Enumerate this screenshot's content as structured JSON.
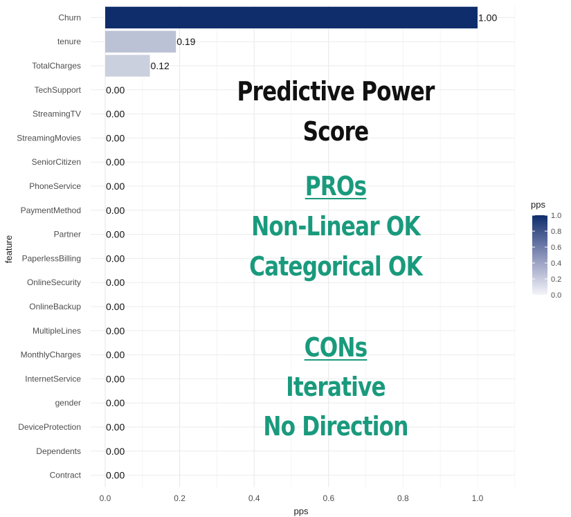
{
  "chart_data": {
    "type": "bar",
    "orientation": "horizontal",
    "xlabel": "pps",
    "ylabel": "feature",
    "xlim": [
      0,
      1.1
    ],
    "x_ticks": [
      "0.0",
      "0.2",
      "0.4",
      "0.6",
      "0.8",
      "1.0"
    ],
    "grid": true,
    "categories": [
      "Churn",
      "tenure",
      "TotalCharges",
      "TechSupport",
      "StreamingTV",
      "StreamingMovies",
      "SeniorCitizen",
      "PhoneService",
      "PaymentMethod",
      "Partner",
      "PaperlessBilling",
      "OnlineSecurity",
      "OnlineBackup",
      "MultipleLines",
      "MonthlyCharges",
      "InternetService",
      "gender",
      "DeviceProtection",
      "Dependents",
      "Contract"
    ],
    "values": [
      1.0,
      0.19,
      0.12,
      0,
      0,
      0,
      0,
      0,
      0,
      0,
      0,
      0,
      0,
      0,
      0,
      0,
      0,
      0,
      0,
      0
    ],
    "value_labels": [
      "1.00",
      "0.19",
      "0.12",
      "0.00",
      "0.00",
      "0.00",
      "0.00",
      "0.00",
      "0.00",
      "0.00",
      "0.00",
      "0.00",
      "0.00",
      "0.00",
      "0.00",
      "0.00",
      "0.00",
      "0.00",
      "0.00",
      "0.00"
    ],
    "legend": {
      "title": "pps",
      "ticks": [
        "1.0",
        "0.8",
        "0.6",
        "0.4",
        "0.2",
        "0.0"
      ],
      "color_low": "#f4f4f8",
      "color_high": "#0f2d6b",
      "placement": "right"
    }
  },
  "overlay": {
    "title_line1": "Predictive Power",
    "title_line2": "Score",
    "pros_heading": "PROs",
    "pros_1": "Non-Linear OK",
    "pros_2": "Categorical OK",
    "cons_heading": "CONs",
    "cons_1": "Iterative",
    "cons_2": "No Direction"
  }
}
